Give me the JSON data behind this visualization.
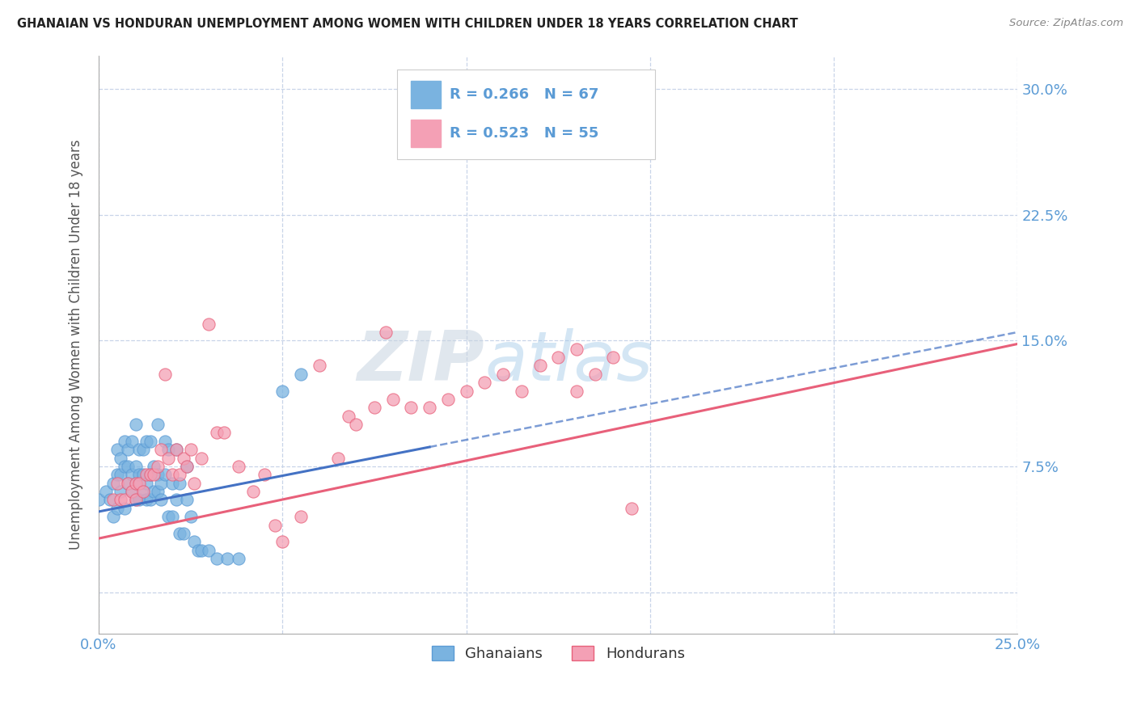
{
  "title": "GHANAIAN VS HONDURAN UNEMPLOYMENT AMONG WOMEN WITH CHILDREN UNDER 18 YEARS CORRELATION CHART",
  "source": "Source: ZipAtlas.com",
  "ylabel": "Unemployment Among Women with Children Under 18 years",
  "xlim": [
    0.0,
    0.25
  ],
  "ylim": [
    -0.025,
    0.32
  ],
  "ytick_positions": [
    0.0,
    0.075,
    0.15,
    0.225,
    0.3
  ],
  "yticklabels_right": [
    "",
    "7.5%",
    "15.0%",
    "22.5%",
    "30.0%"
  ],
  "ghanaian_color": "#7ab3e0",
  "honduran_color": "#f4a0b5",
  "trend_ghanaian_color": "#4472c4",
  "trend_honduran_color": "#e8607a",
  "watermark_zip": "ZIP",
  "watermark_atlas": "atlas",
  "background_color": "#ffffff",
  "grid_color": "#c8d4e8",
  "legend_labels": [
    "Ghanaians",
    "Hondurans"
  ],
  "ghanaian_line_x0": 0.0,
  "ghanaian_line_x1": 0.25,
  "ghanaian_line_y0": 0.048,
  "ghanaian_line_y1": 0.155,
  "honduran_line_x0": 0.0,
  "honduran_line_x1": 0.25,
  "honduran_line_y0": 0.032,
  "honduran_line_y1": 0.148,
  "ghanaian_scatter_x": [
    0.0,
    0.002,
    0.003,
    0.004,
    0.004,
    0.005,
    0.005,
    0.005,
    0.006,
    0.006,
    0.006,
    0.007,
    0.007,
    0.007,
    0.008,
    0.008,
    0.008,
    0.009,
    0.009,
    0.009,
    0.01,
    0.01,
    0.01,
    0.01,
    0.011,
    0.011,
    0.011,
    0.012,
    0.012,
    0.012,
    0.013,
    0.013,
    0.013,
    0.014,
    0.014,
    0.014,
    0.015,
    0.015,
    0.016,
    0.016,
    0.016,
    0.017,
    0.017,
    0.018,
    0.018,
    0.019,
    0.019,
    0.02,
    0.02,
    0.021,
    0.021,
    0.022,
    0.022,
    0.023,
    0.024,
    0.024,
    0.025,
    0.026,
    0.027,
    0.028,
    0.03,
    0.032,
    0.035,
    0.038,
    0.05,
    0.055,
    0.085
  ],
  "ghanaian_scatter_y": [
    0.055,
    0.06,
    0.055,
    0.065,
    0.045,
    0.07,
    0.085,
    0.05,
    0.06,
    0.07,
    0.08,
    0.075,
    0.09,
    0.05,
    0.065,
    0.075,
    0.085,
    0.06,
    0.07,
    0.09,
    0.055,
    0.065,
    0.075,
    0.1,
    0.055,
    0.07,
    0.085,
    0.06,
    0.07,
    0.085,
    0.055,
    0.065,
    0.09,
    0.055,
    0.07,
    0.09,
    0.06,
    0.075,
    0.06,
    0.07,
    0.1,
    0.055,
    0.065,
    0.07,
    0.09,
    0.045,
    0.085,
    0.045,
    0.065,
    0.055,
    0.085,
    0.035,
    0.065,
    0.035,
    0.055,
    0.075,
    0.045,
    0.03,
    0.025,
    0.025,
    0.025,
    0.02,
    0.02,
    0.02,
    0.12,
    0.13,
    0.285
  ],
  "honduran_scatter_x": [
    0.004,
    0.005,
    0.006,
    0.007,
    0.008,
    0.009,
    0.01,
    0.01,
    0.011,
    0.012,
    0.013,
    0.014,
    0.015,
    0.016,
    0.017,
    0.018,
    0.019,
    0.02,
    0.021,
    0.022,
    0.023,
    0.024,
    0.025,
    0.026,
    0.028,
    0.03,
    0.032,
    0.034,
    0.038,
    0.042,
    0.045,
    0.048,
    0.05,
    0.055,
    0.06,
    0.065,
    0.068,
    0.07,
    0.075,
    0.078,
    0.08,
    0.085,
    0.09,
    0.095,
    0.1,
    0.105,
    0.11,
    0.115,
    0.12,
    0.125,
    0.13,
    0.13,
    0.135,
    0.14,
    0.145
  ],
  "honduran_scatter_y": [
    0.055,
    0.065,
    0.055,
    0.055,
    0.065,
    0.06,
    0.055,
    0.065,
    0.065,
    0.06,
    0.07,
    0.07,
    0.07,
    0.075,
    0.085,
    0.13,
    0.08,
    0.07,
    0.085,
    0.07,
    0.08,
    0.075,
    0.085,
    0.065,
    0.08,
    0.16,
    0.095,
    0.095,
    0.075,
    0.06,
    0.07,
    0.04,
    0.03,
    0.045,
    0.135,
    0.08,
    0.105,
    0.1,
    0.11,
    0.155,
    0.115,
    0.11,
    0.11,
    0.115,
    0.12,
    0.125,
    0.13,
    0.12,
    0.135,
    0.14,
    0.12,
    0.145,
    0.13,
    0.14,
    0.05
  ]
}
